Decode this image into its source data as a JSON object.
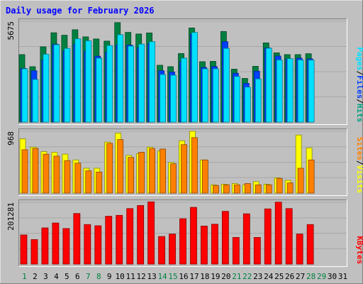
{
  "chart_data": {
    "type": "bar",
    "title": "Daily usage for February 2026",
    "x": [
      "1",
      "2",
      "3",
      "4",
      "5",
      "6",
      "7",
      "8",
      "9",
      "10",
      "11",
      "12",
      "13",
      "14",
      "15",
      "16",
      "17",
      "18",
      "19",
      "20",
      "21",
      "22",
      "23",
      "24",
      "25",
      "26",
      "27",
      "28",
      "29",
      "30",
      "31"
    ],
    "weekend_days": [
      "1",
      "7",
      "8",
      "14",
      "15",
      "21",
      "22",
      "28",
      "29"
    ],
    "panels": [
      {
        "ymax_label": "5675",
        "ymax": 5675,
        "ylabel": [
          "Pages",
          "Files",
          "Hits"
        ],
        "ylabel_colors": [
          "#00e0ff",
          "#0040ff",
          "#00a080"
        ],
        "series": [
          {
            "name": "Hits",
            "color": "#008040",
            "values": [
              3800,
              3120,
              4240,
              5030,
              4890,
              5200,
              4800,
              4680,
              4560,
              5600,
              5050,
              4960,
              5020,
              3200,
              3120,
              3860,
              5300,
              3400,
              3420,
              5100,
              2980,
              2460,
              3140,
              4460,
              3900,
              3800,
              3800,
              3850,
              0,
              0,
              0
            ]
          },
          {
            "name": "Files",
            "color": "#0040ff",
            "values": [
              3020,
              2890,
              3500,
              4390,
              4010,
              4400,
              4000,
              3710,
              3950,
              4350,
              4340,
              4200,
              4430,
              2890,
              2820,
              3420,
              4950,
              3080,
              3130,
              4530,
              2750,
              2180,
              2870,
              4180,
              3720,
              3560,
              3600,
              3560,
              0,
              0,
              0
            ]
          },
          {
            "name": "Pages",
            "color": "#00e0ff",
            "values": [
              3000,
              2400,
              3820,
              4360,
              4150,
              4690,
              4580,
              3600,
              4310,
              4920,
              4280,
              4390,
              4530,
              2680,
              2640,
              3600,
              5050,
              3000,
              3000,
              4150,
              2570,
              1970,
              2430,
              4160,
              3500,
              3570,
              3500,
              3490,
              0,
              0,
              0
            ]
          }
        ]
      },
      {
        "ymax_label": "968",
        "ymax": 968,
        "ylabel": [
          "Sites",
          "Visits"
        ],
        "ylabel_colors": [
          "#ff8000",
          "#ffff00"
        ],
        "series": [
          {
            "name": "Visits",
            "color": "#ffff00",
            "values": [
              850,
              720,
              650,
              640,
              610,
              520,
              390,
              390,
              800,
              940,
              590,
              620,
              720,
              660,
              480,
              820,
              970,
              520,
              130,
              140,
              150,
              130,
              180,
              140,
              240,
              200,
              910,
              710,
              0,
              0,
              0
            ]
          },
          {
            "name": "Sites",
            "color": "#ff8000",
            "values": [
              680,
              700,
              610,
              580,
              510,
              470,
              350,
              330,
              780,
              840,
              560,
              640,
              700,
              690,
              460,
              760,
              870,
              520,
              120,
              130,
              130,
              150,
              130,
              130,
              230,
              160,
              390,
              520,
              0,
              0,
              0
            ]
          }
        ]
      },
      {
        "ymax_label": "201281",
        "ymax": 201281,
        "ylabel": [
          "KBytes"
        ],
        "ylabel_colors": [
          "#ff0000"
        ],
        "series": [
          {
            "name": "KBytes",
            "color": "#ff0000",
            "values": [
              95000,
              80000,
              118000,
              134000,
              116000,
              165000,
              129000,
              125000,
              156000,
              159000,
              181000,
              191000,
              203000,
              90000,
              98000,
              148000,
              185000,
              124000,
              130000,
              172000,
              87000,
              164000,
              87000,
              180000,
              202000,
              181000,
              98000,
              129000,
              0,
              0,
              0
            ]
          }
        ]
      }
    ]
  }
}
